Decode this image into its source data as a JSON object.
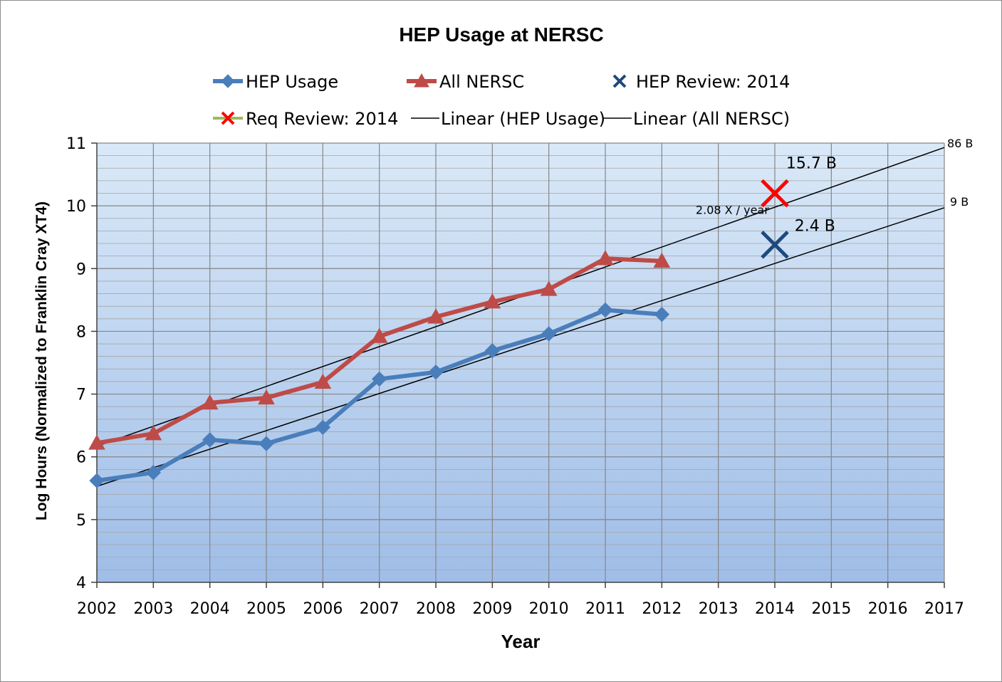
{
  "chart_data": {
    "type": "line",
    "title": "HEP Usage at NERSC",
    "xlabel": "Year",
    "ylabel": "Log Hours (Normalized to Franklin Cray XT4)",
    "xlim": [
      2002,
      2017
    ],
    "ylim": [
      4,
      11
    ],
    "x_ticks": [
      "2002",
      "2003",
      "2004",
      "2005",
      "2006",
      "2007",
      "2008",
      "2009",
      "2010",
      "2011",
      "2012",
      "2013",
      "2014",
      "2015",
      "2016",
      "2017"
    ],
    "y_ticks": [
      "4",
      "5",
      "6",
      "7",
      "8",
      "9",
      "10",
      "11"
    ],
    "grid": true,
    "legend_position": "top",
    "series": [
      {
        "name": "HEP Usage",
        "color": "#4a7ebb",
        "marker": "diamond",
        "x": [
          2002,
          2003,
          2004,
          2005,
          2006,
          2007,
          2008,
          2009,
          2010,
          2011,
          2012
        ],
        "values": [
          5.62,
          5.75,
          6.27,
          6.21,
          6.47,
          7.24,
          7.35,
          7.69,
          7.96,
          8.34,
          8.27
        ]
      },
      {
        "name": "All NERSC",
        "color": "#be4b48",
        "marker": "triangle",
        "x": [
          2002,
          2003,
          2004,
          2005,
          2006,
          2007,
          2008,
          2009,
          2010,
          2011,
          2012
        ],
        "values": [
          6.22,
          6.37,
          6.86,
          6.94,
          7.19,
          7.92,
          8.23,
          8.47,
          8.67,
          9.16,
          9.12
        ]
      },
      {
        "name": "HEP Review: 2014",
        "color": "#1f497d",
        "marker": "x",
        "x": [
          2014
        ],
        "values": [
          9.38
        ]
      },
      {
        "name": "Req Review: 2014",
        "color": "#ff0000",
        "legend_line_color": "#9bbb59",
        "marker": "x",
        "x": [
          2014
        ],
        "values": [
          10.2
        ]
      },
      {
        "name": "Linear (HEP Usage)",
        "color": "#000000",
        "x": [
          2002,
          2017
        ],
        "values": [
          5.53,
          9.97
        ]
      },
      {
        "name": "Linear (All NERSC)",
        "color": "#000000",
        "x": [
          2002,
          2017
        ],
        "values": [
          6.17,
          10.93
        ]
      }
    ],
    "annotations": [
      {
        "text": "15.7 B",
        "x": 2014.2,
        "y": 10.6,
        "size": "big"
      },
      {
        "text": "2.4 B",
        "x": 2014.35,
        "y": 9.6,
        "size": "big"
      },
      {
        "text": "2.08 X / year",
        "x": 2012.6,
        "y": 9.87,
        "size": "small"
      },
      {
        "text": "86 B",
        "x": 2017.05,
        "y": 10.93,
        "size": "small"
      },
      {
        "text": "9 B",
        "x": 2017.1,
        "y": 10.0,
        "size": "small"
      }
    ]
  }
}
